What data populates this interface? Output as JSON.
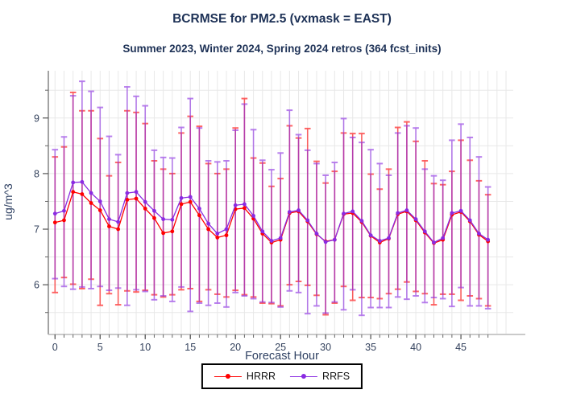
{
  "header": {
    "title": "BCRMSE for PM2.5 (vxmask = EAST)",
    "subtitle": "Summer 2023, Winter 2024, Spring 2024 retros (364 fcst_inits)"
  },
  "chart_data": {
    "type": "line",
    "title": "BCRMSE for PM2.5 (vxmask = EAST)",
    "subtitle": "Summer 2023, Winter 2024, Spring 2024 retros (364 fcst_inits)",
    "xlabel": "Forecast Hour",
    "ylabel": "ug/m^3",
    "xlim": [
      -0.74,
      50.8
    ],
    "ylim": [
      5.12,
      9.85
    ],
    "x_major_ticks": [
      0,
      5,
      10,
      15,
      20,
      25,
      30,
      35,
      40,
      45
    ],
    "x_minor_step": 1,
    "x_minor_max": 48,
    "y_major_ticks": [
      6,
      7,
      8,
      9
    ],
    "y_minor_ticks": [
      5.5,
      6.5,
      7.5,
      8.5,
      9.5
    ],
    "grid": true,
    "gridline_values_y": [
      5.5,
      6,
      6.5,
      7,
      7.5,
      8,
      8.5,
      9,
      9.5
    ],
    "legend_position": "bottom-center",
    "error_bars": true,
    "x": [
      0,
      1,
      2,
      3,
      4,
      5,
      6,
      7,
      8,
      9,
      10,
      11,
      12,
      13,
      14,
      15,
      16,
      17,
      18,
      19,
      20,
      21,
      22,
      23,
      24,
      25,
      26,
      27,
      28,
      29,
      30,
      31,
      32,
      33,
      34,
      35,
      36,
      37,
      38,
      39,
      40,
      41,
      42,
      43,
      44,
      45,
      46,
      47,
      48
    ],
    "series": [
      {
        "name": "HRRR",
        "color": "#ff0000",
        "values": [
          7.12,
          7.16,
          7.67,
          7.63,
          7.47,
          7.34,
          7.05,
          7.0,
          7.53,
          7.55,
          7.37,
          7.2,
          6.93,
          6.96,
          7.45,
          7.49,
          7.25,
          7.0,
          6.85,
          6.89,
          7.36,
          7.38,
          7.19,
          6.92,
          6.76,
          6.81,
          7.29,
          7.32,
          7.14,
          6.91,
          6.78,
          6.81,
          7.27,
          7.29,
          7.13,
          6.88,
          6.76,
          6.83,
          7.27,
          7.32,
          7.16,
          6.94,
          6.75,
          6.81,
          7.26,
          7.31,
          7.14,
          6.9,
          6.78
        ],
        "err_lo": [
          5.86,
          6.13,
          6.01,
          5.93,
          6.1,
          5.63,
          5.84,
          5.64,
          5.89,
          5.87,
          5.9,
          5.82,
          5.78,
          5.82,
          5.91,
          5.93,
          5.7,
          5.91,
          5.83,
          5.78,
          5.9,
          5.82,
          5.78,
          5.67,
          5.66,
          5.62,
          6.0,
          6.06,
          5.99,
          5.81,
          5.46,
          5.67,
          5.97,
          5.72,
          5.77,
          5.77,
          5.75,
          5.84,
          5.92,
          6.05,
          5.88,
          5.84,
          5.64,
          5.83,
          5.83,
          5.72,
          5.8,
          5.75,
          5.62
        ],
        "err_hi": [
          8.3,
          8.48,
          9.46,
          9.13,
          9.13,
          8.63,
          7.96,
          8.2,
          9.13,
          9.1,
          8.9,
          8.23,
          8.08,
          8.0,
          8.73,
          9.03,
          8.85,
          8.18,
          8.0,
          8.08,
          8.82,
          9.35,
          8.28,
          8.19,
          7.77,
          7.91,
          8.86,
          8.64,
          8.81,
          8.22,
          7.83,
          8.04,
          8.73,
          8.72,
          8.72,
          7.99,
          7.72,
          8.08,
          8.83,
          8.93,
          8.58,
          8.23,
          7.82,
          7.8,
          8.04,
          8.6,
          8.24,
          7.87,
          7.62
        ]
      },
      {
        "name": "RRFS",
        "color": "#8a2be2",
        "values": [
          7.28,
          7.33,
          7.84,
          7.85,
          7.65,
          7.5,
          7.18,
          7.13,
          7.65,
          7.67,
          7.49,
          7.33,
          7.18,
          7.17,
          7.56,
          7.58,
          7.37,
          7.1,
          6.92,
          7.0,
          7.43,
          7.45,
          7.24,
          6.96,
          6.79,
          6.84,
          7.31,
          7.34,
          7.16,
          6.92,
          6.77,
          6.81,
          7.28,
          7.32,
          7.15,
          6.89,
          6.79,
          6.84,
          7.29,
          7.34,
          7.18,
          6.96,
          6.76,
          6.84,
          7.29,
          7.33,
          7.16,
          6.92,
          6.81
        ],
        "err_lo": [
          6.11,
          5.97,
          5.92,
          5.96,
          5.93,
          5.97,
          5.9,
          5.94,
          5.63,
          5.91,
          5.88,
          5.73,
          5.8,
          5.7,
          5.96,
          5.52,
          5.67,
          5.63,
          5.67,
          5.6,
          5.86,
          5.8,
          5.75,
          5.69,
          5.68,
          5.6,
          5.89,
          5.86,
          5.48,
          5.62,
          5.49,
          5.69,
          5.55,
          5.91,
          5.45,
          5.59,
          5.59,
          5.59,
          5.78,
          5.74,
          5.8,
          5.68,
          5.77,
          5.75,
          5.61,
          5.95,
          5.62,
          5.62,
          5.57
        ],
        "err_hi": [
          8.43,
          8.66,
          9.4,
          9.66,
          9.48,
          9.19,
          8.67,
          8.34,
          9.56,
          9.39,
          9.22,
          8.42,
          8.29,
          8.28,
          8.83,
          9.35,
          8.82,
          8.23,
          8.21,
          8.23,
          8.78,
          9.25,
          8.79,
          8.24,
          8.07,
          8.37,
          9.14,
          8.7,
          8.42,
          8.18,
          7.97,
          8.2,
          8.99,
          8.65,
          8.56,
          8.43,
          8.18,
          7.97,
          8.73,
          8.86,
          8.82,
          8.08,
          7.96,
          7.88,
          8.6,
          8.89,
          8.65,
          8.3,
          7.76
        ]
      }
    ]
  },
  "legend": {
    "items": [
      {
        "label": "HRRR",
        "color": "#ff0000"
      },
      {
        "label": "RRFS",
        "color": "#8a2be2"
      }
    ]
  }
}
